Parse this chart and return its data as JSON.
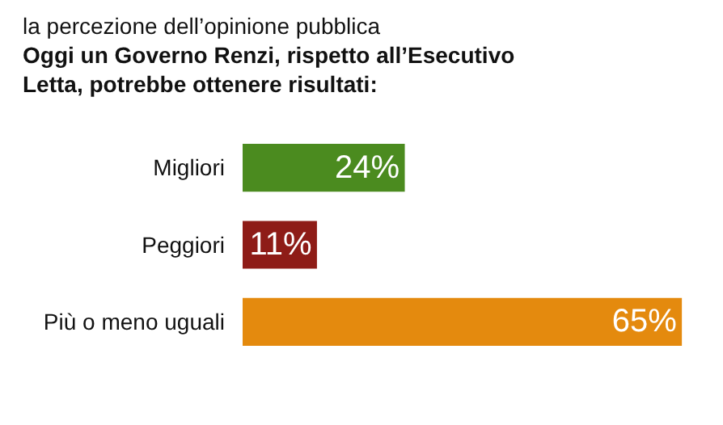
{
  "chart_data": {
    "type": "bar",
    "orientation": "horizontal",
    "title": "la percezione dell’opinione pubblica",
    "subtitle": "Oggi un Governo Renzi, rispetto all’Esecutivo Letta, potrebbe ottenere risultati:",
    "categories": [
      "Migliori",
      "Peggiori",
      "Più o meno uguali"
    ],
    "values": [
      24,
      11,
      65
    ],
    "colors": [
      "#4b8b1f",
      "#8e1c17",
      "#e48a0e"
    ],
    "value_labels": [
      "24%",
      "11%",
      "65%"
    ]
  }
}
